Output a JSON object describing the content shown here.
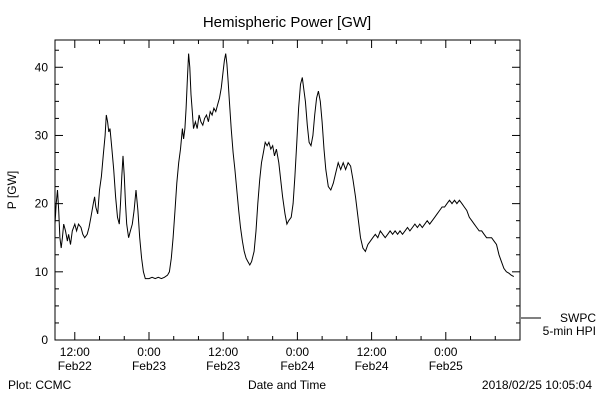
{
  "footer": {
    "left": "Plot: CCMC",
    "right": "2018/02/25 10:05:04"
  },
  "legend": {
    "source": "SWPC",
    "product": "5-min HPI"
  },
  "chart_data": {
    "type": "line",
    "title": "Hemispheric Power [GW]",
    "xlabel": "Date and Time",
    "ylabel": "P [GW]",
    "ylim": [
      0,
      44
    ],
    "xlim_hours": [
      8.8,
      84
    ],
    "x_unit": "hours since 2018-02-22 00:00",
    "grid": false,
    "legend_position": "outside-right-bottom",
    "line_color": "#000000",
    "yticks": [
      0,
      10,
      20,
      30,
      40
    ],
    "xticks": [
      {
        "hour": 12,
        "time": "12:00",
        "date": "Feb22"
      },
      {
        "hour": 24,
        "time": "0:00",
        "date": "Feb23"
      },
      {
        "hour": 36,
        "time": "12:00",
        "date": "Feb23"
      },
      {
        "hour": 48,
        "time": "0:00",
        "date": "Feb24"
      },
      {
        "hour": 60,
        "time": "12:00",
        "date": "Feb24"
      },
      {
        "hour": 72,
        "time": "0:00",
        "date": "Feb25"
      }
    ],
    "series": [
      {
        "name": "SWPC 5-min HPI",
        "color": "#000000",
        "points": [
          [
            8.8,
            17
          ],
          [
            9.0,
            20
          ],
          [
            9.2,
            22
          ],
          [
            9.4,
            19
          ],
          [
            9.6,
            15
          ],
          [
            9.8,
            13.5
          ],
          [
            10.0,
            15
          ],
          [
            10.2,
            17
          ],
          [
            10.5,
            16
          ],
          [
            10.8,
            14.5
          ],
          [
            11.0,
            15.5
          ],
          [
            11.3,
            14
          ],
          [
            11.6,
            16
          ],
          [
            12.0,
            17
          ],
          [
            12.3,
            16
          ],
          [
            12.6,
            17
          ],
          [
            13.0,
            16.5
          ],
          [
            13.3,
            15.5
          ],
          [
            13.6,
            15
          ],
          [
            14.0,
            15.5
          ],
          [
            14.3,
            16.5
          ],
          [
            14.6,
            18
          ],
          [
            15.0,
            20
          ],
          [
            15.2,
            21
          ],
          [
            15.4,
            19.5
          ],
          [
            15.7,
            18.5
          ],
          [
            16.0,
            22
          ],
          [
            16.3,
            24
          ],
          [
            16.6,
            27
          ],
          [
            16.9,
            30
          ],
          [
            17.1,
            33
          ],
          [
            17.3,
            32
          ],
          [
            17.5,
            30.5
          ],
          [
            17.7,
            31
          ],
          [
            18.0,
            28
          ],
          [
            18.3,
            25
          ],
          [
            18.6,
            21
          ],
          [
            18.9,
            18
          ],
          [
            19.2,
            17
          ],
          [
            19.4,
            20
          ],
          [
            19.6,
            24
          ],
          [
            19.8,
            27
          ],
          [
            20.0,
            24
          ],
          [
            20.2,
            20
          ],
          [
            20.4,
            17
          ],
          [
            20.7,
            15
          ],
          [
            21.0,
            16
          ],
          [
            21.3,
            17
          ],
          [
            21.6,
            19
          ],
          [
            21.9,
            22
          ],
          [
            22.2,
            19
          ],
          [
            22.5,
            15
          ],
          [
            22.8,
            12
          ],
          [
            23.1,
            10
          ],
          [
            23.4,
            9
          ],
          [
            24.0,
            9
          ],
          [
            24.5,
            9.2
          ],
          [
            25.0,
            9
          ],
          [
            25.5,
            9.2
          ],
          [
            26.0,
            9
          ],
          [
            26.5,
            9.2
          ],
          [
            27.0,
            9.5
          ],
          [
            27.3,
            10
          ],
          [
            27.6,
            12
          ],
          [
            27.9,
            15
          ],
          [
            28.2,
            19
          ],
          [
            28.5,
            23
          ],
          [
            28.8,
            26
          ],
          [
            29.1,
            28
          ],
          [
            29.4,
            31
          ],
          [
            29.6,
            29.5
          ],
          [
            29.8,
            31
          ],
          [
            30.0,
            34
          ],
          [
            30.2,
            38
          ],
          [
            30.4,
            42
          ],
          [
            30.6,
            40
          ],
          [
            30.8,
            36
          ],
          [
            31.0,
            33.5
          ],
          [
            31.2,
            31
          ],
          [
            31.5,
            32
          ],
          [
            31.8,
            31
          ],
          [
            32.1,
            33
          ],
          [
            32.4,
            32
          ],
          [
            32.7,
            31.5
          ],
          [
            33.0,
            32.5
          ],
          [
            33.3,
            33
          ],
          [
            33.6,
            32
          ],
          [
            33.9,
            33.5
          ],
          [
            34.2,
            33
          ],
          [
            34.5,
            34
          ],
          [
            34.8,
            33.5
          ],
          [
            35.1,
            34.5
          ],
          [
            35.4,
            35.5
          ],
          [
            35.7,
            37
          ],
          [
            36.0,
            39.5
          ],
          [
            36.2,
            41
          ],
          [
            36.4,
            42
          ],
          [
            36.6,
            40.5
          ],
          [
            36.8,
            38
          ],
          [
            37.0,
            35
          ],
          [
            37.3,
            31
          ],
          [
            37.6,
            27.5
          ],
          [
            37.9,
            25
          ],
          [
            38.2,
            22
          ],
          [
            38.5,
            19
          ],
          [
            38.8,
            16.5
          ],
          [
            39.1,
            14.5
          ],
          [
            39.4,
            13
          ],
          [
            39.7,
            12
          ],
          [
            40.0,
            11.5
          ],
          [
            40.3,
            11
          ],
          [
            40.6,
            11.5
          ],
          [
            41.0,
            13
          ],
          [
            41.3,
            16
          ],
          [
            41.6,
            20
          ],
          [
            41.9,
            23.5
          ],
          [
            42.2,
            26
          ],
          [
            42.5,
            27.5
          ],
          [
            42.8,
            29
          ],
          [
            43.1,
            28.5
          ],
          [
            43.4,
            29
          ],
          [
            43.7,
            28
          ],
          [
            44.0,
            28.5
          ],
          [
            44.3,
            27
          ],
          [
            44.6,
            28
          ],
          [
            45.0,
            26
          ],
          [
            45.3,
            23.5
          ],
          [
            45.6,
            21
          ],
          [
            46.0,
            18.5
          ],
          [
            46.3,
            17
          ],
          [
            46.6,
            17.5
          ],
          [
            47.0,
            18
          ],
          [
            47.3,
            20
          ],
          [
            47.6,
            24
          ],
          [
            47.9,
            29
          ],
          [
            48.2,
            34
          ],
          [
            48.5,
            37.5
          ],
          [
            48.8,
            38.5
          ],
          [
            49.0,
            37
          ],
          [
            49.3,
            35
          ],
          [
            49.6,
            31.5
          ],
          [
            49.9,
            29
          ],
          [
            50.2,
            28.5
          ],
          [
            50.5,
            30
          ],
          [
            50.8,
            33
          ],
          [
            51.1,
            35.5
          ],
          [
            51.4,
            36.5
          ],
          [
            51.7,
            35
          ],
          [
            52.0,
            32
          ],
          [
            52.3,
            28
          ],
          [
            52.6,
            25
          ],
          [
            53.0,
            22.5
          ],
          [
            53.4,
            22
          ],
          [
            53.8,
            23
          ],
          [
            54.2,
            24.5
          ],
          [
            54.6,
            26
          ],
          [
            55.0,
            25
          ],
          [
            55.4,
            26
          ],
          [
            55.8,
            25
          ],
          [
            56.2,
            26
          ],
          [
            56.6,
            25.5
          ],
          [
            57.0,
            23.5
          ],
          [
            57.4,
            21
          ],
          [
            57.8,
            18
          ],
          [
            58.2,
            15
          ],
          [
            58.6,
            13.5
          ],
          [
            59.0,
            13
          ],
          [
            59.4,
            14
          ],
          [
            59.8,
            14.5
          ],
          [
            60.2,
            15
          ],
          [
            60.6,
            15.5
          ],
          [
            61.0,
            15
          ],
          [
            61.4,
            16
          ],
          [
            61.8,
            15.5
          ],
          [
            62.2,
            15
          ],
          [
            62.6,
            15.5
          ],
          [
            63.0,
            16
          ],
          [
            63.4,
            15.5
          ],
          [
            63.8,
            16
          ],
          [
            64.2,
            15.5
          ],
          [
            64.6,
            16
          ],
          [
            65.0,
            15.5
          ],
          [
            65.4,
            16
          ],
          [
            65.8,
            16.5
          ],
          [
            66.2,
            16
          ],
          [
            66.6,
            16.5
          ],
          [
            67.0,
            17
          ],
          [
            67.4,
            16.5
          ],
          [
            67.8,
            17
          ],
          [
            68.2,
            16.5
          ],
          [
            68.6,
            17
          ],
          [
            69.0,
            17.5
          ],
          [
            69.4,
            17
          ],
          [
            69.8,
            17.5
          ],
          [
            70.2,
            18
          ],
          [
            70.6,
            18.5
          ],
          [
            71.0,
            19
          ],
          [
            71.4,
            19.5
          ],
          [
            71.8,
            19.5
          ],
          [
            72.2,
            20
          ],
          [
            72.6,
            20.5
          ],
          [
            73.0,
            20
          ],
          [
            73.4,
            20.5
          ],
          [
            73.8,
            20
          ],
          [
            74.2,
            20.5
          ],
          [
            74.6,
            20
          ],
          [
            75.0,
            19.5
          ],
          [
            75.4,
            19
          ],
          [
            75.8,
            18
          ],
          [
            76.2,
            17.5
          ],
          [
            76.6,
            17
          ],
          [
            77.0,
            16.5
          ],
          [
            77.4,
            16
          ],
          [
            77.8,
            16
          ],
          [
            78.2,
            15.5
          ],
          [
            78.6,
            15
          ],
          [
            79.0,
            15
          ],
          [
            79.4,
            15
          ],
          [
            79.8,
            14.5
          ],
          [
            80.2,
            14
          ],
          [
            80.6,
            12.5
          ],
          [
            81.0,
            11.5
          ],
          [
            81.4,
            10.5
          ],
          [
            81.8,
            10
          ],
          [
            82.2,
            9.8
          ],
          [
            82.6,
            9.5
          ],
          [
            83.0,
            9.3
          ]
        ]
      }
    ]
  }
}
